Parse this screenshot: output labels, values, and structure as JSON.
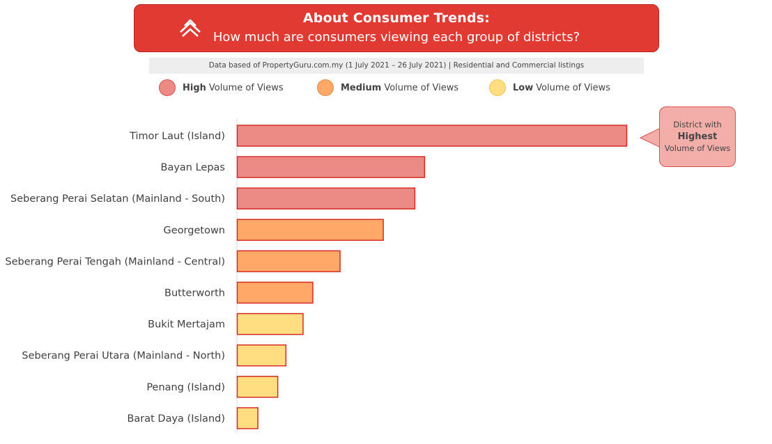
{
  "header": {
    "title": "About Consumer Trends:",
    "subtitle": "How much are consumers viewing each group of districts?",
    "logo_icon": "propertyguru-logo-icon"
  },
  "source_note": "Data based of PropertyGuru.com.my (1 July 2021 – 26 July 2021) | Residential and Commercial listings",
  "legend": [
    {
      "emphasis": "High",
      "text": "Volume of Views",
      "color": "#ec8a86"
    },
    {
      "emphasis": "Medium",
      "text": "Volume of Views",
      "color": "#ffa868"
    },
    {
      "emphasis": "Low",
      "text": "Volume of Views",
      "color": "#ffdd80"
    }
  ],
  "callout": {
    "line1": "District with",
    "line2": "Highest",
    "line3": "Volume of Views",
    "color": "#f4aeaa"
  },
  "colors": {
    "brand": "#e03a33",
    "bar_border": "#d62b24",
    "high": "#ec8a86",
    "medium": "#ffa868",
    "low": "#ffdd80"
  },
  "chart_data": {
    "type": "bar",
    "orientation": "horizontal",
    "categories": [
      "Timor Laut (Island)",
      "Bayan Lepas",
      "Seberang Perai Selatan (Mainland - South)",
      "Georgetown",
      "Seberang Perai Tengah (Mainland - Central)",
      "Butterworth",
      "Bukit Mertajam",
      "Seberang Perai Utara (Mainland - North)",
      "Penang (Island)",
      "Barat Daya (Island)"
    ],
    "values": [
      100,
      48.1,
      45.6,
      37.5,
      26.4,
      19.4,
      16.9,
      12.5,
      10.4,
      5.3
    ],
    "groups": [
      "High",
      "High",
      "High",
      "Medium",
      "Medium",
      "Medium",
      "Low",
      "Low",
      "Low",
      "Low"
    ],
    "xlim": [
      0,
      100
    ],
    "grid": false,
    "legend_position": "top"
  }
}
